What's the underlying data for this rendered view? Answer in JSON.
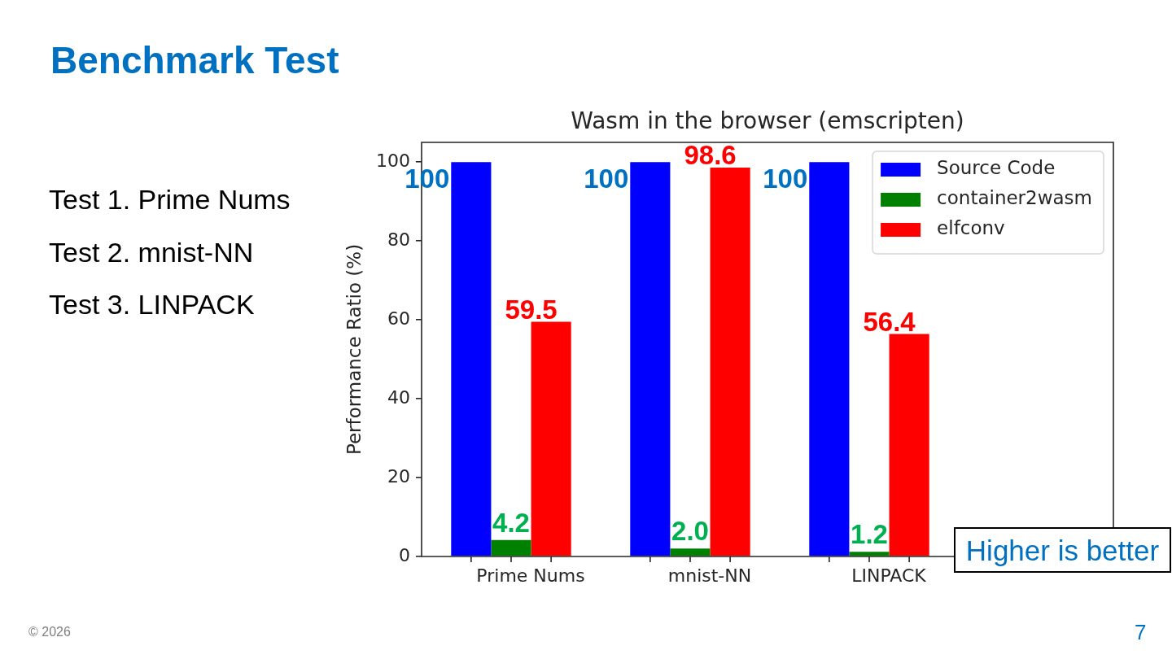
{
  "chart_data": {
    "type": "bar",
    "title": "Wasm in the browser (emscripten)",
    "ylabel": "Performance Ratio (%)",
    "categories": [
      "Prime Nums",
      "mnist-NN",
      "LINPACK"
    ],
    "series": [
      {
        "name": "Source Code",
        "color": "#0000ff",
        "values": [
          100,
          100,
          100
        ],
        "value_labels": [
          "100",
          "100",
          "100"
        ]
      },
      {
        "name": "container2wasm",
        "color": "#008000",
        "values": [
          4.2,
          2.0,
          1.2
        ],
        "value_labels": [
          "4.2",
          "2.0",
          "1.2"
        ]
      },
      {
        "name": "elfconv",
        "color": "#ff0000",
        "values": [
          59.5,
          98.6,
          56.4
        ],
        "value_labels": [
          "59.5",
          "98.6",
          "56.4"
        ]
      }
    ],
    "ylim": [
      0,
      105
    ],
    "yticks": [
      0,
      20,
      40,
      60,
      80,
      100
    ],
    "legend": "top right",
    "annotations": [
      "Benchmark Test",
      "Test 1. Prime Nums",
      "Test 2. mnist-NN",
      "Test 3. LINPACK",
      "Higher is better",
      "© 2026",
      "7"
    ]
  }
}
